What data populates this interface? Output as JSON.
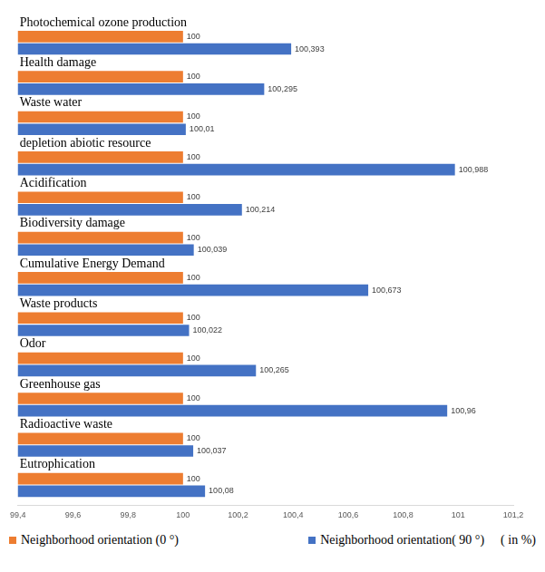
{
  "chart_data": {
    "type": "bar",
    "orientation": "horizontal",
    "categories": [
      "Photochemical ozone production",
      "Health damage",
      "Waste water",
      "depletion abiotic resource",
      "Acidification",
      "Biodiversity damage",
      "Cumulative Energy Demand",
      "Waste products",
      "Odor",
      "Greenhouse gas",
      "Radioactive waste",
      "Eutrophication"
    ],
    "series": [
      {
        "name": "Neighborhood orientation (0 °)",
        "color": "#ed7d31",
        "values": [
          100,
          100,
          100,
          100,
          100,
          100,
          100,
          100,
          100,
          100,
          100,
          100
        ]
      },
      {
        "name": "Neighborhood orientation( 90 °)",
        "color": "#4472c4",
        "values": [
          100.393,
          100.295,
          100.01,
          100.988,
          100.214,
          100.039,
          100.673,
          100.022,
          100.265,
          100.96,
          100.037,
          100.08
        ],
        "value_labels": [
          "100,393",
          "100,295",
          "100,01",
          "100,988",
          "100,214",
          "100,039",
          "100,673",
          "100,022",
          "100,265",
          "100,96",
          "100,037",
          "100,08"
        ]
      }
    ],
    "x_label": "( in %)",
    "xlim": [
      99.4,
      101.2
    ],
    "xticks": [
      {
        "value": 99.4,
        "label": "99,4"
      },
      {
        "value": 99.6,
        "label": "99,6"
      },
      {
        "value": 99.8,
        "label": "99,8"
      },
      100,
      {
        "value": 100.2,
        "label": "100,2"
      },
      {
        "value": 100.4,
        "label": "100,4"
      },
      {
        "value": 100.6,
        "label": "100,6"
      },
      {
        "value": 100.8,
        "label": "100,8"
      },
      101,
      {
        "value": 101.2,
        "label": "101,2"
      }
    ],
    "grid": false,
    "legend": "bottom",
    "data_labels": true
  }
}
